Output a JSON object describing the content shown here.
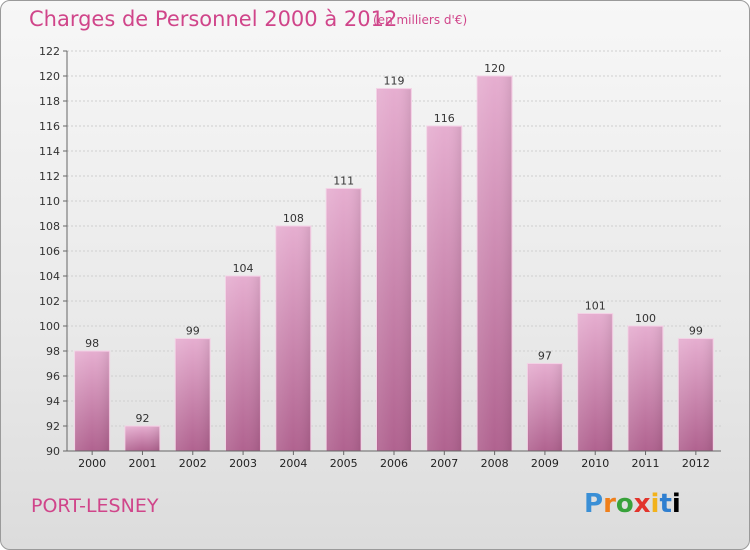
{
  "header": {
    "title": "Charges de Personnel 2000 à 2012",
    "subtitle": "(en milliers d'€)"
  },
  "footer": {
    "place": "PORT-LESNEY",
    "logo": [
      "P",
      "r",
      "o",
      "x",
      "i",
      "t",
      "i"
    ]
  },
  "colors": {
    "accent": "#d0458a",
    "bar_top": "#e3a6cc",
    "bar_bottom": "#b56a98"
  },
  "chart_data": {
    "type": "bar",
    "title": "Charges de Personnel 2000 à 2012",
    "subtitle": "(en milliers d'€)",
    "categories": [
      "2000",
      "2001",
      "2002",
      "2003",
      "2004",
      "2005",
      "2006",
      "2007",
      "2008",
      "2009",
      "2010",
      "2011",
      "2012"
    ],
    "values": [
      98,
      92,
      99,
      104,
      108,
      111,
      119,
      116,
      120,
      97,
      101,
      100,
      99
    ],
    "ylim": [
      90,
      122
    ],
    "yticks": [
      90,
      92,
      94,
      96,
      98,
      100,
      102,
      104,
      106,
      108,
      110,
      112,
      114,
      116,
      118,
      120,
      122
    ],
    "grid": true
  }
}
